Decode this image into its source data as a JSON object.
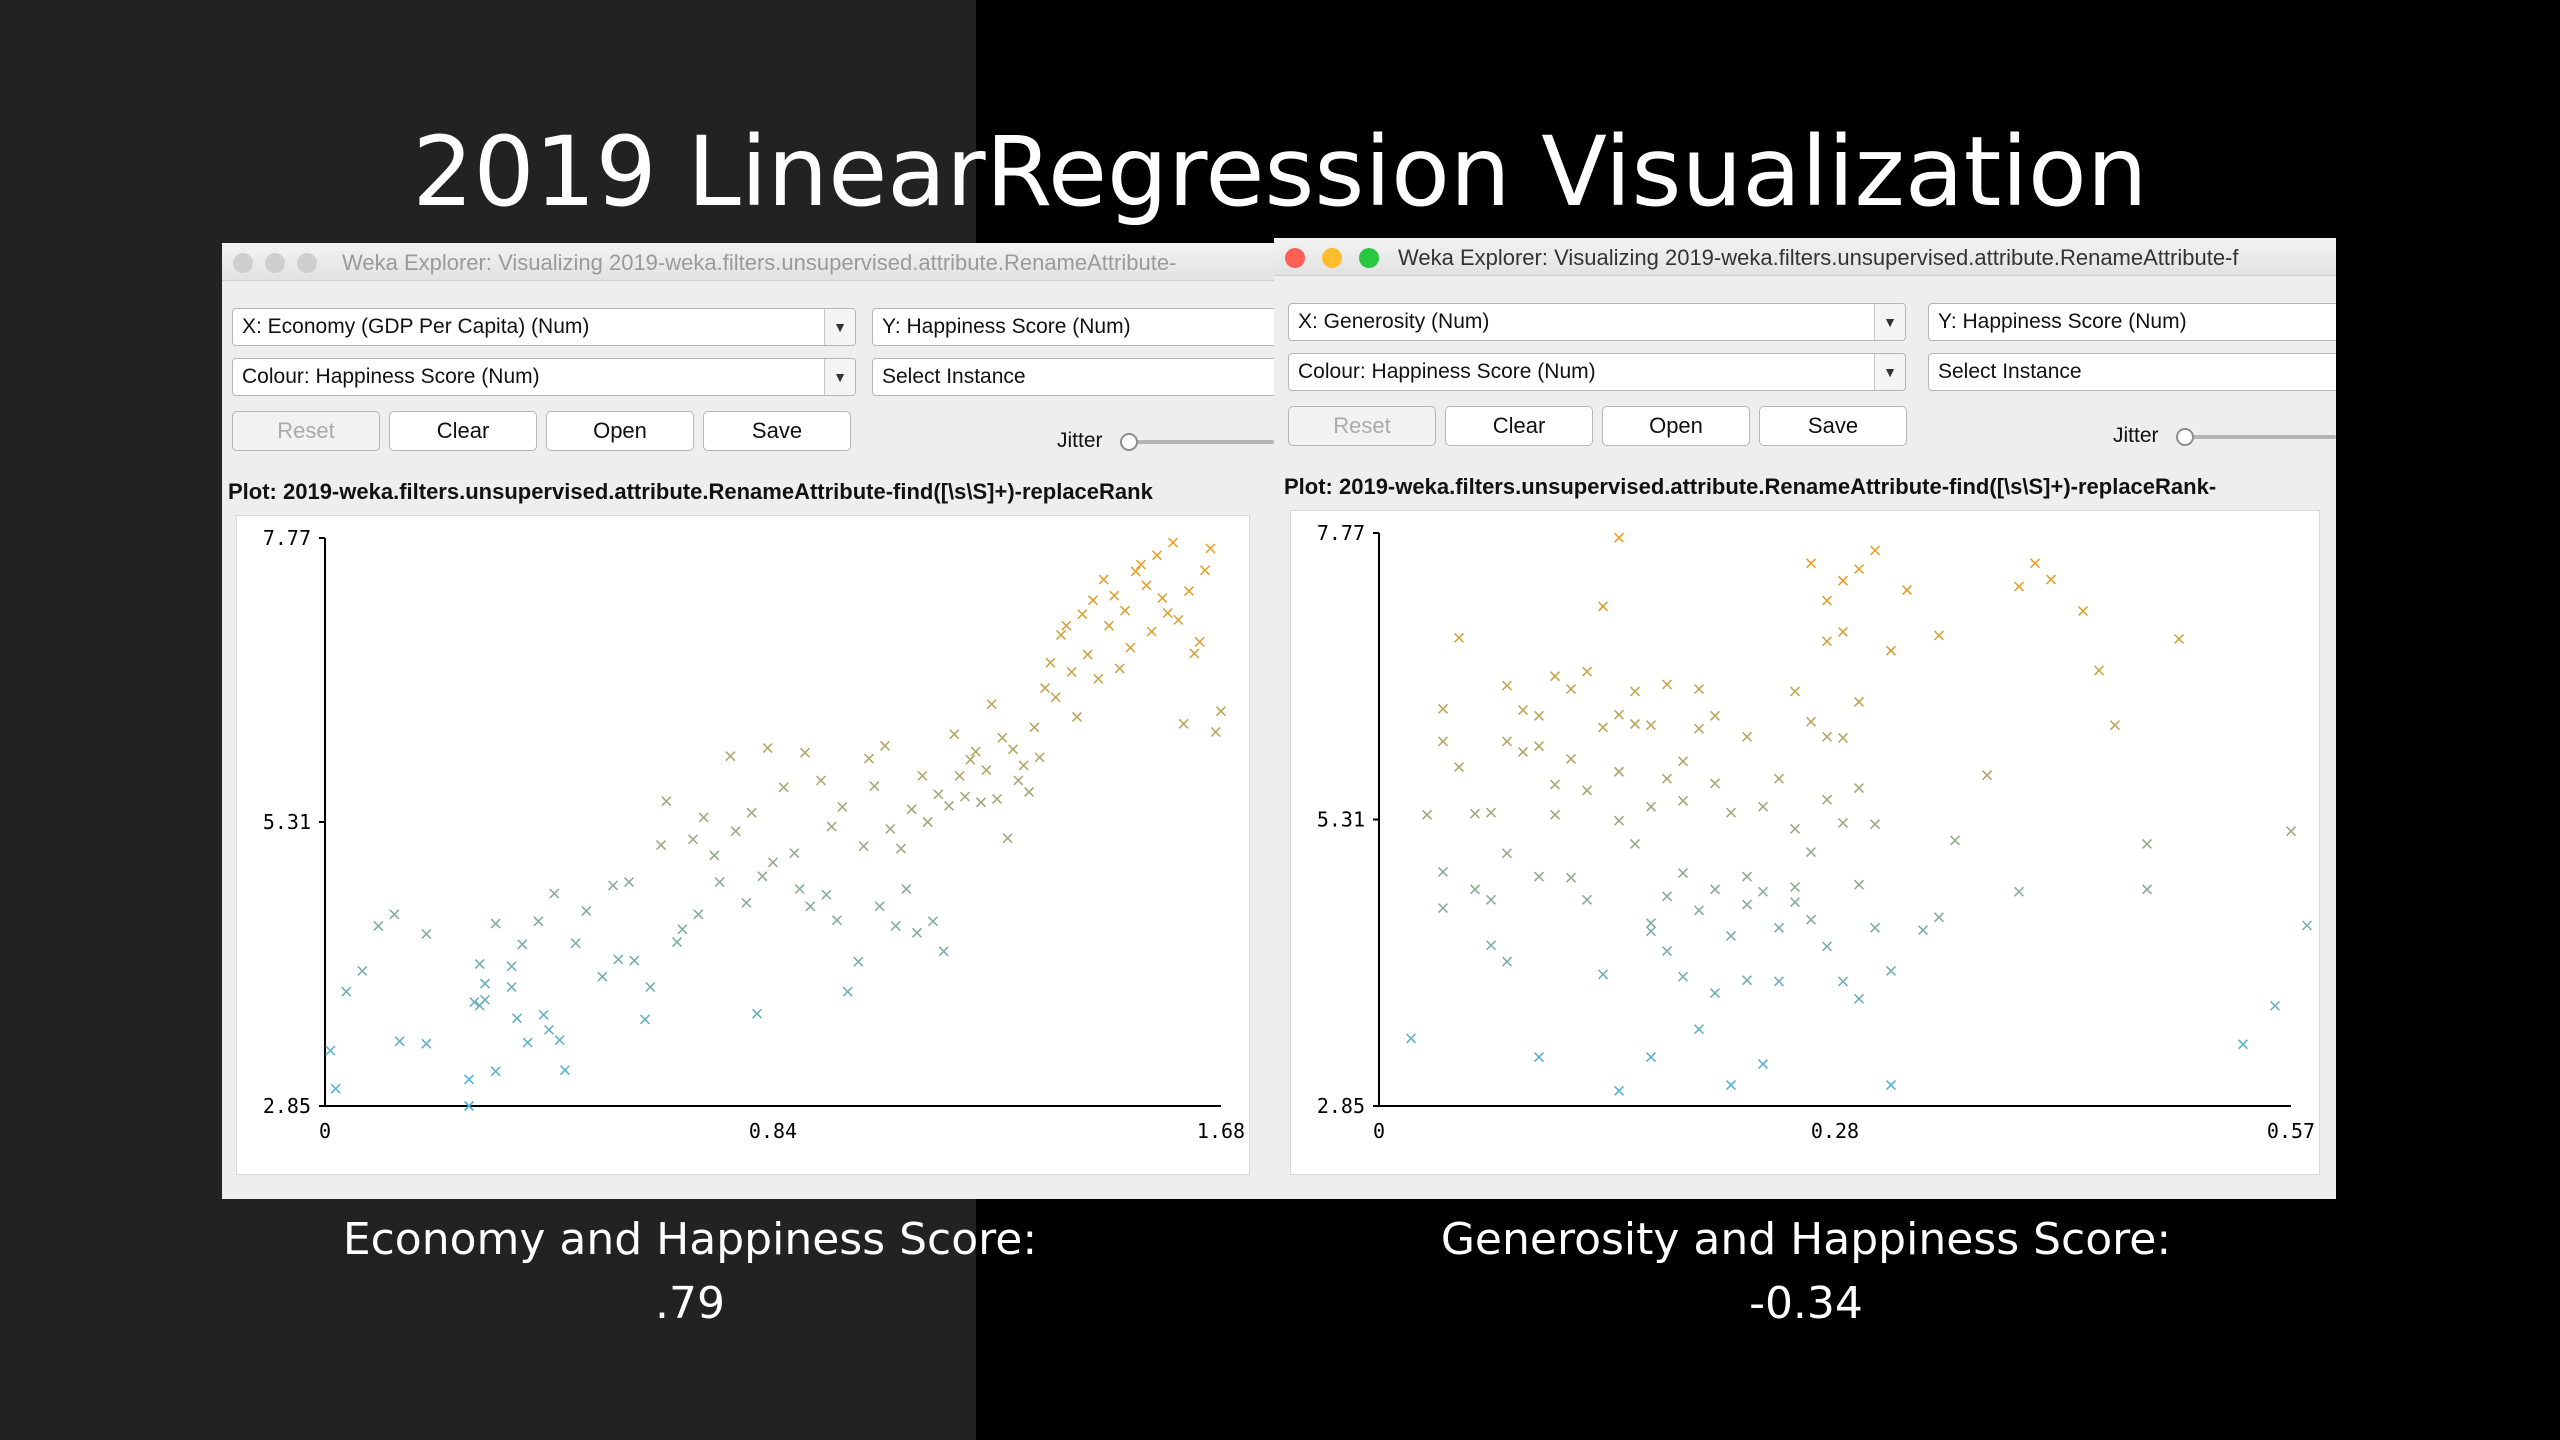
{
  "slide": {
    "title": "2019 LinearRegression Visualization",
    "captions": [
      {
        "line1": "Economy and Happiness Score:",
        "line2": ".79"
      },
      {
        "line1": "Generosity and Happiness Score:",
        "line2": "-0.34"
      }
    ]
  },
  "windows": [
    {
      "title": "Weka Explorer: Visualizing 2019-weka.filters.unsupervised.attribute.RenameAttribute-",
      "active": false,
      "x_select": "X: Economy (GDP Per Capita) (Num)",
      "y_select": "Y: Happiness Score (Num)",
      "colour_select": "Colour: Happiness Score (Num)",
      "instance_select": "Select Instance",
      "buttons": {
        "reset": "Reset",
        "clear": "Clear",
        "open": "Open",
        "save": "Save"
      },
      "jitter_label": "Jitter",
      "plot_label": "Plot: 2019-weka.filters.unsupervised.attribute.RenameAttribute-find([\\s\\S]+)-replaceRank"
    },
    {
      "title": "Weka Explorer: Visualizing 2019-weka.filters.unsupervised.attribute.RenameAttribute-f",
      "active": true,
      "x_select": "X: Generosity (Num)",
      "y_select": "Y: Happiness Score (Num)",
      "colour_select": "Colour: Happiness Score (Num)",
      "instance_select": "Select Instance",
      "buttons": {
        "reset": "Reset",
        "clear": "Clear",
        "open": "Open",
        "save": "Save"
      },
      "jitter_label": "Jitter",
      "plot_label": "Plot: 2019-weka.filters.unsupervised.attribute.RenameAttribute-find([\\s\\S]+)-replaceRank-"
    }
  ],
  "colors": {
    "low": "#4fb3e0",
    "high": "#f0a020",
    "axis": "#000000",
    "traffic_red": "#ff5f57",
    "traffic_yellow": "#febc2e",
    "traffic_green": "#28c840"
  },
  "chart_data": [
    {
      "type": "scatter",
      "marker": "x",
      "xlabel": "",
      "ylabel": "",
      "x_ticks": [
        "0",
        "0.84",
        "1.68"
      ],
      "y_ticks": [
        "7.77",
        "5.31",
        "2.85"
      ],
      "xlim": [
        0,
        1.68
      ],
      "ylim": [
        2.85,
        7.77
      ],
      "color_by": "y",
      "points": [
        [
          0.01,
          3.33
        ],
        [
          0.02,
          3.0
        ],
        [
          0.04,
          3.84
        ],
        [
          0.07,
          4.02
        ],
        [
          0.1,
          4.41
        ],
        [
          0.13,
          4.51
        ],
        [
          0.14,
          3.41
        ],
        [
          0.19,
          4.34
        ],
        [
          0.19,
          3.39
        ],
        [
          0.27,
          3.08
        ],
        [
          0.27,
          2.85
        ],
        [
          0.28,
          3.75
        ],
        [
          0.29,
          3.72
        ],
        [
          0.29,
          4.08
        ],
        [
          0.3,
          3.77
        ],
        [
          0.3,
          3.91
        ],
        [
          0.32,
          4.43
        ],
        [
          0.32,
          3.15
        ],
        [
          0.35,
          4.06
        ],
        [
          0.35,
          3.88
        ],
        [
          0.36,
          3.61
        ],
        [
          0.37,
          4.25
        ],
        [
          0.38,
          3.4
        ],
        [
          0.4,
          4.45
        ],
        [
          0.41,
          3.64
        ],
        [
          0.42,
          3.51
        ],
        [
          0.43,
          4.69
        ],
        [
          0.44,
          3.42
        ],
        [
          0.45,
          3.16
        ],
        [
          0.47,
          4.26
        ],
        [
          0.49,
          4.54
        ],
        [
          0.52,
          3.97
        ],
        [
          0.54,
          4.76
        ],
        [
          0.55,
          4.12
        ],
        [
          0.57,
          4.79
        ],
        [
          0.58,
          4.11
        ],
        [
          0.6,
          3.6
        ],
        [
          0.61,
          3.88
        ],
        [
          0.63,
          5.11
        ],
        [
          0.64,
          5.49
        ],
        [
          0.66,
          4.27
        ],
        [
          0.67,
          4.38
        ],
        [
          0.69,
          5.16
        ],
        [
          0.7,
          4.51
        ],
        [
          0.71,
          5.35
        ],
        [
          0.73,
          5.02
        ],
        [
          0.74,
          4.79
        ],
        [
          0.76,
          5.88
        ],
        [
          0.77,
          5.23
        ],
        [
          0.79,
          4.61
        ],
        [
          0.8,
          5.39
        ],
        [
          0.81,
          3.65
        ],
        [
          0.82,
          4.84
        ],
        [
          0.83,
          5.95
        ],
        [
          0.84,
          4.96
        ],
        [
          0.86,
          5.61
        ],
        [
          0.88,
          5.04
        ],
        [
          0.89,
          4.73
        ],
        [
          0.9,
          5.91
        ],
        [
          0.91,
          4.58
        ],
        [
          0.93,
          5.67
        ],
        [
          0.94,
          4.68
        ],
        [
          0.95,
          5.27
        ],
        [
          0.96,
          4.46
        ],
        [
          0.97,
          5.44
        ],
        [
          0.98,
          3.84
        ],
        [
          1.0,
          4.1
        ],
        [
          1.01,
          5.1
        ],
        [
          1.02,
          5.86
        ],
        [
          1.03,
          5.62
        ],
        [
          1.04,
          4.58
        ],
        [
          1.05,
          5.97
        ],
        [
          1.06,
          5.25
        ],
        [
          1.07,
          4.41
        ],
        [
          1.08,
          5.08
        ],
        [
          1.09,
          4.73
        ],
        [
          1.1,
          5.42
        ],
        [
          1.11,
          4.35
        ],
        [
          1.12,
          5.71
        ],
        [
          1.13,
          5.31
        ],
        [
          1.14,
          4.45
        ],
        [
          1.15,
          5.55
        ],
        [
          1.16,
          4.19
        ],
        [
          1.17,
          5.45
        ],
        [
          1.18,
          6.07
        ],
        [
          1.19,
          5.71
        ],
        [
          1.2,
          5.53
        ],
        [
          1.21,
          5.85
        ],
        [
          1.22,
          5.92
        ],
        [
          1.23,
          5.48
        ],
        [
          1.24,
          5.76
        ],
        [
          1.25,
          6.33
        ],
        [
          1.26,
          5.51
        ],
        [
          1.27,
          6.04
        ],
        [
          1.28,
          5.17
        ],
        [
          1.29,
          5.94
        ],
        [
          1.3,
          5.67
        ],
        [
          1.31,
          5.8
        ],
        [
          1.32,
          5.57
        ],
        [
          1.33,
          6.13
        ],
        [
          1.34,
          5.87
        ],
        [
          1.35,
          6.47
        ],
        [
          1.36,
          6.69
        ],
        [
          1.37,
          6.39
        ],
        [
          1.38,
          6.93
        ],
        [
          1.39,
          7.01
        ],
        [
          1.4,
          6.61
        ],
        [
          1.41,
          6.22
        ],
        [
          1.42,
          7.11
        ],
        [
          1.43,
          6.76
        ],
        [
          1.44,
          7.23
        ],
        [
          1.45,
          6.55
        ],
        [
          1.46,
          7.41
        ],
        [
          1.47,
          7.01
        ],
        [
          1.48,
          7.27
        ],
        [
          1.49,
          6.64
        ],
        [
          1.5,
          7.14
        ],
        [
          1.51,
          6.82
        ],
        [
          1.52,
          7.48
        ],
        [
          1.53,
          7.54
        ],
        [
          1.54,
          7.36
        ],
        [
          1.55,
          6.96
        ],
        [
          1.56,
          7.62
        ],
        [
          1.57,
          7.25
        ],
        [
          1.58,
          7.12
        ],
        [
          1.59,
          7.73
        ],
        [
          1.6,
          7.06
        ],
        [
          1.61,
          6.16
        ],
        [
          1.62,
          7.31
        ],
        [
          1.63,
          6.77
        ],
        [
          1.64,
          6.87
        ],
        [
          1.65,
          7.49
        ],
        [
          1.66,
          7.68
        ],
        [
          1.67,
          6.09
        ],
        [
          1.68,
          6.27
        ]
      ]
    },
    {
      "type": "scatter",
      "marker": "x",
      "xlabel": "",
      "ylabel": "",
      "x_ticks": [
        "0",
        "0.28",
        "0.57"
      ],
      "y_ticks": [
        "7.77",
        "5.31",
        "2.85"
      ],
      "xlim": [
        0,
        0.57
      ],
      "ylim": [
        2.85,
        7.77
      ],
      "color_by": "y",
      "points": [
        [
          0.02,
          3.43
        ],
        [
          0.03,
          5.35
        ],
        [
          0.04,
          6.26
        ],
        [
          0.04,
          5.98
        ],
        [
          0.04,
          4.86
        ],
        [
          0.04,
          4.55
        ],
        [
          0.05,
          5.76
        ],
        [
          0.05,
          6.87
        ],
        [
          0.06,
          5.36
        ],
        [
          0.06,
          4.71
        ],
        [
          0.07,
          4.23
        ],
        [
          0.07,
          5.37
        ],
        [
          0.07,
          4.62
        ],
        [
          0.08,
          4.09
        ],
        [
          0.08,
          5.98
        ],
        [
          0.08,
          6.46
        ],
        [
          0.08,
          5.02
        ],
        [
          0.09,
          6.25
        ],
        [
          0.09,
          5.89
        ],
        [
          0.1,
          5.94
        ],
        [
          0.1,
          4.82
        ],
        [
          0.1,
          3.27
        ],
        [
          0.1,
          6.2
        ],
        [
          0.11,
          5.61
        ],
        [
          0.11,
          6.54
        ],
        [
          0.11,
          5.35
        ],
        [
          0.12,
          5.83
        ],
        [
          0.12,
          6.43
        ],
        [
          0.12,
          4.81
        ],
        [
          0.13,
          6.58
        ],
        [
          0.13,
          5.56
        ],
        [
          0.13,
          4.62
        ],
        [
          0.14,
          6.1
        ],
        [
          0.14,
          3.98
        ],
        [
          0.14,
          7.14
        ],
        [
          0.15,
          5.72
        ],
        [
          0.15,
          6.21
        ],
        [
          0.15,
          7.73
        ],
        [
          0.15,
          5.3
        ],
        [
          0.15,
          2.98
        ],
        [
          0.16,
          6.13
        ],
        [
          0.16,
          6.41
        ],
        [
          0.16,
          5.1
        ],
        [
          0.17,
          6.12
        ],
        [
          0.17,
          5.42
        ],
        [
          0.17,
          4.35
        ],
        [
          0.17,
          3.27
        ],
        [
          0.17,
          4.42
        ],
        [
          0.18,
          4.18
        ],
        [
          0.18,
          6.47
        ],
        [
          0.18,
          5.66
        ],
        [
          0.18,
          4.65
        ],
        [
          0.19,
          3.96
        ],
        [
          0.19,
          5.81
        ],
        [
          0.19,
          4.85
        ],
        [
          0.19,
          5.47
        ],
        [
          0.2,
          6.43
        ],
        [
          0.2,
          6.09
        ],
        [
          0.2,
          4.53
        ],
        [
          0.2,
          3.51
        ],
        [
          0.21,
          5.62
        ],
        [
          0.21,
          4.71
        ],
        [
          0.21,
          3.82
        ],
        [
          0.21,
          6.2
        ],
        [
          0.22,
          4.31
        ],
        [
          0.22,
          5.37
        ],
        [
          0.22,
          3.03
        ],
        [
          0.23,
          4.82
        ],
        [
          0.23,
          3.93
        ],
        [
          0.23,
          6.02
        ],
        [
          0.23,
          4.58
        ],
        [
          0.24,
          5.42
        ],
        [
          0.24,
          3.21
        ],
        [
          0.24,
          4.69
        ],
        [
          0.25,
          5.66
        ],
        [
          0.25,
          4.38
        ],
        [
          0.25,
          3.92
        ],
        [
          0.26,
          6.41
        ],
        [
          0.26,
          5.23
        ],
        [
          0.26,
          4.6
        ],
        [
          0.26,
          4.73
        ],
        [
          0.27,
          7.51
        ],
        [
          0.27,
          6.15
        ],
        [
          0.27,
          5.03
        ],
        [
          0.27,
          4.45
        ],
        [
          0.28,
          6.84
        ],
        [
          0.28,
          7.19
        ],
        [
          0.28,
          5.48
        ],
        [
          0.28,
          6.02
        ],
        [
          0.28,
          4.22
        ],
        [
          0.29,
          7.36
        ],
        [
          0.29,
          6.92
        ],
        [
          0.29,
          6.01
        ],
        [
          0.29,
          3.92
        ],
        [
          0.29,
          5.28
        ],
        [
          0.3,
          7.46
        ],
        [
          0.3,
          6.32
        ],
        [
          0.3,
          4.75
        ],
        [
          0.3,
          5.58
        ],
        [
          0.3,
          3.77
        ],
        [
          0.31,
          7.62
        ],
        [
          0.31,
          5.27
        ],
        [
          0.31,
          4.38
        ],
        [
          0.32,
          6.76
        ],
        [
          0.32,
          4.01
        ],
        [
          0.32,
          3.03
        ],
        [
          0.33,
          7.28
        ],
        [
          0.34,
          4.36
        ],
        [
          0.35,
          6.89
        ],
        [
          0.35,
          4.47
        ],
        [
          0.36,
          5.13
        ],
        [
          0.38,
          5.69
        ],
        [
          0.4,
          7.31
        ],
        [
          0.4,
          4.69
        ],
        [
          0.41,
          7.51
        ],
        [
          0.42,
          7.37
        ],
        [
          0.44,
          7.1
        ],
        [
          0.45,
          6.59
        ],
        [
          0.46,
          6.12
        ],
        [
          0.48,
          5.1
        ],
        [
          0.48,
          4.71
        ],
        [
          0.5,
          6.86
        ],
        [
          0.54,
          3.38
        ],
        [
          0.56,
          3.71
        ],
        [
          0.57,
          5.21
        ],
        [
          0.58,
          4.4
        ]
      ]
    }
  ]
}
